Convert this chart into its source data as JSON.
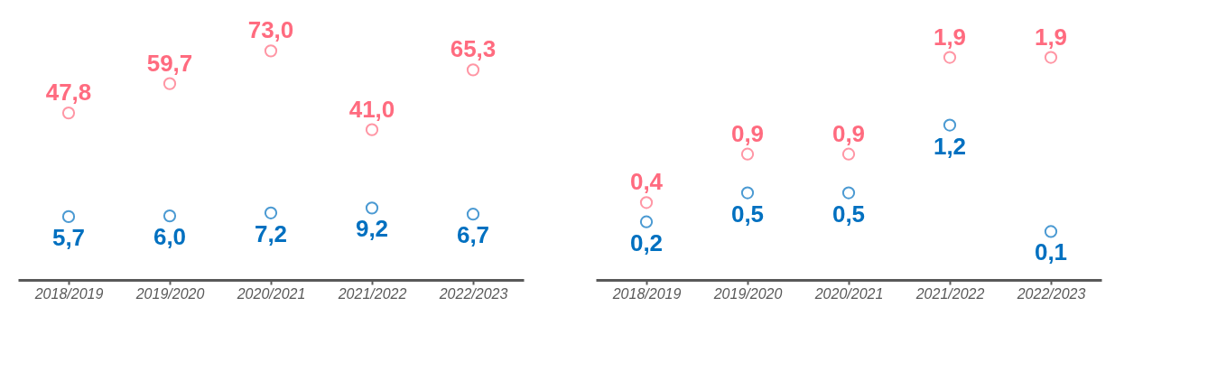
{
  "chart_data": [
    {
      "type": "scatter",
      "categories": [
        "2018/2019",
        "2019/2020",
        "2020/2021",
        "2021/2022",
        "2022/2023"
      ],
      "marker": "circle",
      "series": [
        {
          "color": "#ff6b7f",
          "values": [
            47.8,
            59.7,
            73.0,
            41.0,
            65.3
          ],
          "value_labels": [
            "47,8",
            "59,7",
            "73,0",
            "41,0",
            "65,3"
          ]
        },
        {
          "color": "#0070c0",
          "values": [
            5.7,
            6.0,
            7.2,
            9.2,
            6.7
          ],
          "value_labels": [
            "5,7",
            "6,0",
            "7,2",
            "9,2",
            "6,7"
          ]
        }
      ]
    },
    {
      "type": "scatter",
      "categories": [
        "2018/2019",
        "2019/2020",
        "2020/2021",
        "2021/2022",
        "2022/2023"
      ],
      "marker": "circle",
      "series": [
        {
          "color": "#ff6b7f",
          "values": [
            0.4,
            0.9,
            0.9,
            1.9,
            1.9
          ],
          "value_labels": [
            "0,4",
            "0,9",
            "0,9",
            "1,9",
            "1,9"
          ]
        },
        {
          "color": "#0070c0",
          "values": [
            0.2,
            0.5,
            0.5,
            1.2,
            0.1
          ],
          "value_labels": [
            "0,2",
            "0,5",
            "0,5",
            "1,2",
            "0,1"
          ]
        }
      ]
    }
  ]
}
